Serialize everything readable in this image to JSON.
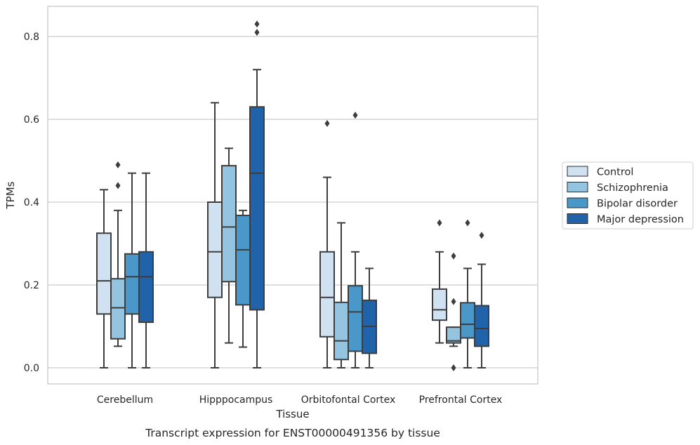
{
  "chart_data": {
    "type": "box",
    "title": "",
    "caption": "Transcript expression for ENST00000491356 by tissue",
    "xlabel": "Tissue",
    "ylabel": "TPMs",
    "ylim": [
      -0.04,
      0.875
    ],
    "yticks": [
      0.0,
      0.2,
      0.4,
      0.6,
      0.8
    ],
    "ytick_labels": [
      "0.0",
      "0.2",
      "0.4",
      "0.6",
      "0.8"
    ],
    "grid": "horizontal",
    "legend_position": "right",
    "categories": [
      "Cerebellum",
      "Hipppocampus",
      "Orbitofontal Cortex",
      "Prefrontal Cortex"
    ],
    "series": [
      {
        "name": "Control",
        "color": "#d0e1f2",
        "boxes": [
          {
            "whislo": 0.0,
            "q1": 0.13,
            "med": 0.21,
            "q3": 0.325,
            "whishi": 0.43,
            "fliers": []
          },
          {
            "whislo": 0.0,
            "q1": 0.17,
            "med": 0.28,
            "q3": 0.4,
            "whishi": 0.64,
            "fliers": []
          },
          {
            "whislo": 0.0,
            "q1": 0.075,
            "med": 0.17,
            "q3": 0.28,
            "whishi": 0.46,
            "fliers": [
              0.59
            ]
          },
          {
            "whislo": 0.06,
            "q1": 0.115,
            "med": 0.14,
            "q3": 0.19,
            "whishi": 0.28,
            "fliers": [
              0.35
            ]
          }
        ]
      },
      {
        "name": "Schizophrenia",
        "color": "#94c4df",
        "boxes": [
          {
            "whislo": 0.052,
            "q1": 0.07,
            "med": 0.145,
            "q3": 0.215,
            "whishi": 0.38,
            "fliers": [
              0.44,
              0.49
            ]
          },
          {
            "whislo": 0.06,
            "q1": 0.208,
            "med": 0.34,
            "q3": 0.488,
            "whishi": 0.53,
            "fliers": []
          },
          {
            "whislo": 0.0,
            "q1": 0.02,
            "med": 0.065,
            "q3": 0.158,
            "whishi": 0.35,
            "fliers": []
          },
          {
            "whislo": 0.052,
            "q1": 0.06,
            "med": 0.065,
            "q3": 0.098,
            "whishi": 0.098,
            "fliers": [
              0.16,
              0.27,
              0.0
            ]
          }
        ]
      },
      {
        "name": "Bipolar disorder",
        "color": "#4a98c9",
        "boxes": [
          {
            "whislo": 0.0,
            "q1": 0.13,
            "med": 0.22,
            "q3": 0.275,
            "whishi": 0.47,
            "fliers": []
          },
          {
            "whislo": 0.05,
            "q1": 0.152,
            "med": 0.285,
            "q3": 0.368,
            "whishi": 0.38,
            "fliers": []
          },
          {
            "whislo": 0.0,
            "q1": 0.04,
            "med": 0.135,
            "q3": 0.198,
            "whishi": 0.28,
            "fliers": [
              0.61
            ]
          },
          {
            "whislo": 0.0,
            "q1": 0.072,
            "med": 0.105,
            "q3": 0.157,
            "whishi": 0.24,
            "fliers": [
              0.35
            ]
          }
        ]
      },
      {
        "name": "Major depression",
        "color": "#2163aa",
        "boxes": [
          {
            "whislo": 0.0,
            "q1": 0.11,
            "med": 0.22,
            "q3": 0.28,
            "whishi": 0.47,
            "fliers": []
          },
          {
            "whislo": 0.0,
            "q1": 0.14,
            "med": 0.47,
            "q3": 0.63,
            "whishi": 0.72,
            "fliers": [
              0.81,
              0.83
            ]
          },
          {
            "whislo": 0.0,
            "q1": 0.035,
            "med": 0.1,
            "q3": 0.163,
            "whishi": 0.24,
            "fliers": []
          },
          {
            "whislo": 0.0,
            "q1": 0.052,
            "med": 0.095,
            "q3": 0.15,
            "whishi": 0.25,
            "fliers": [
              0.32
            ]
          }
        ]
      }
    ]
  }
}
